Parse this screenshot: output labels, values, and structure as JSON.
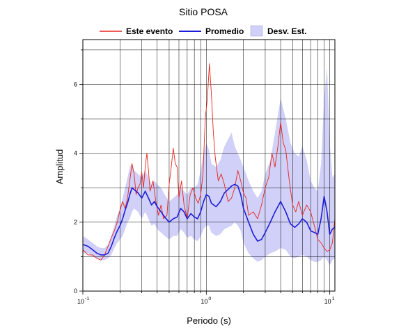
{
  "chart_data": {
    "type": "line",
    "title": "Sitio POSA",
    "xlabel": "Periodo (s)",
    "ylabel": "Amplitud",
    "xscale": "log",
    "xlim": [
      0.1,
      11
    ],
    "ylim": [
      0,
      7.3
    ],
    "grid": true,
    "legend_position": "top",
    "x_ticks": [
      {
        "value": 0.1,
        "base": "10",
        "exp": "-1"
      },
      {
        "value": 1,
        "base": "10",
        "exp": "0"
      },
      {
        "value": 10,
        "base": "10",
        "exp": "1"
      }
    ],
    "y_ticks": [
      {
        "value": 0,
        "label": "0"
      },
      {
        "value": 2,
        "label": "2"
      },
      {
        "value": 4,
        "label": "4"
      },
      {
        "value": 6,
        "label": "6"
      }
    ],
    "series": [
      {
        "name": "Este evento",
        "color": "#e8241c",
        "x": [
          0.1,
          0.11,
          0.12,
          0.13,
          0.14,
          0.15,
          0.16,
          0.17,
          0.18,
          0.19,
          0.2,
          0.21,
          0.22,
          0.23,
          0.24,
          0.25,
          0.26,
          0.27,
          0.28,
          0.29,
          0.3,
          0.31,
          0.32,
          0.33,
          0.34,
          0.35,
          0.37,
          0.39,
          0.41,
          0.43,
          0.45,
          0.48,
          0.5,
          0.52,
          0.54,
          0.56,
          0.58,
          0.6,
          0.63,
          0.66,
          0.7,
          0.74,
          0.78,
          0.82,
          0.86,
          0.9,
          0.94,
          0.98,
          1.02,
          1.06,
          1.1,
          1.14,
          1.18,
          1.25,
          1.32,
          1.4,
          1.5,
          1.6,
          1.7,
          1.8,
          1.9,
          2.0,
          2.1,
          2.2,
          2.4,
          2.6,
          2.8,
          3.0,
          3.2,
          3.4,
          3.6,
          3.8,
          4.0,
          4.2,
          4.4,
          4.7,
          5.0,
          5.3,
          5.6,
          6.0,
          6.5,
          7.0,
          7.5,
          8.0,
          8.5,
          9.0,
          9.5,
          10.0,
          10.5,
          11.0
        ],
        "y": [
          1.2,
          1.05,
          1.05,
          0.95,
          0.9,
          1.05,
          1.3,
          1.55,
          1.75,
          2.0,
          2.35,
          2.6,
          2.4,
          2.7,
          3.2,
          3.7,
          3.4,
          2.8,
          3.0,
          3.1,
          3.45,
          3.0,
          3.6,
          4.0,
          3.5,
          2.9,
          3.2,
          2.6,
          2.2,
          2.5,
          2.1,
          2.2,
          3.1,
          3.6,
          4.15,
          3.7,
          3.6,
          2.7,
          3.2,
          2.5,
          2.1,
          2.8,
          3.0,
          2.7,
          2.55,
          2.8,
          3.4,
          5.0,
          5.6,
          6.6,
          5.7,
          4.6,
          3.9,
          3.2,
          3.4,
          3.1,
          2.6,
          2.7,
          3.0,
          3.5,
          3.2,
          2.85,
          2.7,
          2.2,
          2.3,
          2.1,
          2.5,
          3.0,
          3.3,
          4.0,
          3.6,
          4.2,
          4.9,
          4.3,
          4.1,
          3.2,
          2.5,
          2.3,
          2.6,
          2.2,
          2.5,
          2.3,
          1.9,
          1.5,
          1.4,
          1.25,
          1.15,
          1.2,
          1.4,
          2.1
        ]
      },
      {
        "name": "Promedio",
        "color": "#1c1cd8",
        "x": [
          0.1,
          0.11,
          0.12,
          0.13,
          0.14,
          0.15,
          0.16,
          0.17,
          0.18,
          0.19,
          0.2,
          0.21,
          0.22,
          0.23,
          0.24,
          0.25,
          0.26,
          0.28,
          0.3,
          0.32,
          0.34,
          0.36,
          0.38,
          0.4,
          0.43,
          0.46,
          0.5,
          0.54,
          0.58,
          0.62,
          0.66,
          0.7,
          0.75,
          0.8,
          0.85,
          0.9,
          0.95,
          1.0,
          1.05,
          1.1,
          1.2,
          1.3,
          1.4,
          1.5,
          1.6,
          1.7,
          1.8,
          1.9,
          2.0,
          2.2,
          2.4,
          2.6,
          2.8,
          3.0,
          3.3,
          3.6,
          4.0,
          4.4,
          4.8,
          5.2,
          5.6,
          6.0,
          6.5,
          7.0,
          7.5,
          8.0,
          8.5,
          9.0,
          9.5,
          10.0,
          10.5,
          11.0
        ],
        "y": [
          1.35,
          1.3,
          1.2,
          1.1,
          1.05,
          1.05,
          1.1,
          1.3,
          1.55,
          1.75,
          1.9,
          2.1,
          2.35,
          2.55,
          2.8,
          3.0,
          2.95,
          2.85,
          2.7,
          2.9,
          2.7,
          2.5,
          2.6,
          2.45,
          2.3,
          2.15,
          2.0,
          2.1,
          2.15,
          2.4,
          2.3,
          2.1,
          2.25,
          2.15,
          2.1,
          2.3,
          2.6,
          2.8,
          2.75,
          2.55,
          2.45,
          2.6,
          2.85,
          2.95,
          3.05,
          3.1,
          3.05,
          2.8,
          2.4,
          2.0,
          1.65,
          1.45,
          1.5,
          1.7,
          2.0,
          2.3,
          2.6,
          2.3,
          1.95,
          1.85,
          1.95,
          2.1,
          2.0,
          1.75,
          1.7,
          1.65,
          2.1,
          2.75,
          2.3,
          1.65,
          1.8,
          1.85
        ]
      }
    ],
    "band": {
      "name": "Desv. Est.",
      "color": "#d0d0f8",
      "x": [
        0.1,
        0.11,
        0.12,
        0.13,
        0.14,
        0.15,
        0.16,
        0.17,
        0.18,
        0.19,
        0.2,
        0.21,
        0.22,
        0.23,
        0.24,
        0.25,
        0.26,
        0.28,
        0.3,
        0.32,
        0.34,
        0.36,
        0.38,
        0.4,
        0.43,
        0.46,
        0.5,
        0.54,
        0.58,
        0.62,
        0.66,
        0.7,
        0.75,
        0.8,
        0.85,
        0.9,
        0.95,
        1.0,
        1.05,
        1.1,
        1.2,
        1.3,
        1.4,
        1.5,
        1.6,
        1.7,
        1.8,
        1.9,
        2.0,
        2.2,
        2.4,
        2.6,
        2.8,
        3.0,
        3.3,
        3.6,
        4.0,
        4.4,
        4.8,
        5.2,
        5.6,
        6.0,
        6.5,
        7.0,
        7.5,
        8.0,
        8.5,
        9.0,
        9.5,
        10.0,
        10.5,
        11.0
      ],
      "upper": [
        1.6,
        1.5,
        1.4,
        1.3,
        1.25,
        1.25,
        1.35,
        1.6,
        1.9,
        2.2,
        2.4,
        2.7,
        3.0,
        3.3,
        3.6,
        3.7,
        3.5,
        3.4,
        3.3,
        3.5,
        3.3,
        3.1,
        3.2,
        3.1,
        3.0,
        2.8,
        2.6,
        2.7,
        2.8,
        3.0,
        2.9,
        2.8,
        3.0,
        3.0,
        3.1,
        3.5,
        4.0,
        4.3,
        4.1,
        3.7,
        3.6,
        3.8,
        4.2,
        4.4,
        4.6,
        4.2,
        4.0,
        3.8,
        3.6,
        3.2,
        2.9,
        2.7,
        2.9,
        3.4,
        3.8,
        4.6,
        5.6,
        5.0,
        4.3,
        4.0,
        3.9,
        4.2,
        3.8,
        3.2,
        3.0,
        2.9,
        3.7,
        5.6,
        6.5,
        4.3,
        3.3,
        3.4
      ],
      "lower": [
        1.1,
        1.1,
        1.0,
        0.95,
        0.9,
        0.9,
        0.95,
        1.05,
        1.25,
        1.4,
        1.5,
        1.6,
        1.8,
        2.0,
        2.1,
        2.3,
        2.4,
        2.3,
        2.1,
        2.3,
        2.1,
        1.9,
        1.95,
        1.8,
        1.7,
        1.6,
        1.5,
        1.6,
        1.6,
        1.8,
        1.7,
        1.55,
        1.6,
        1.5,
        1.45,
        1.6,
        1.8,
        1.9,
        1.9,
        1.7,
        1.6,
        1.65,
        1.8,
        1.85,
        1.9,
        2.0,
        1.9,
        1.75,
        1.4,
        1.1,
        0.95,
        0.85,
        0.9,
        1.0,
        1.1,
        1.15,
        1.25,
        1.2,
        1.0,
        0.95,
        1.0,
        1.05,
        1.0,
        0.9,
        0.85,
        0.85,
        0.9,
        1.0,
        0.9,
        0.75,
        0.9,
        0.95
      ]
    }
  }
}
